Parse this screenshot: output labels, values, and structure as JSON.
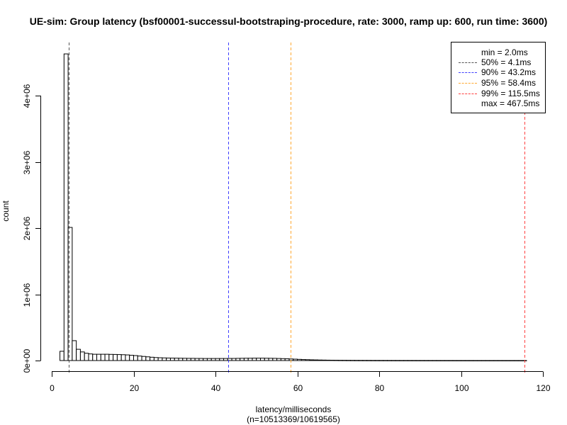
{
  "chart_data": {
    "type": "bar",
    "subtype": "histogram",
    "title": "UE-sim: Group latency (bsf00001-successul-bootstraping-procedure, rate: 3000, ramp up: 600, run time: 3600)",
    "xlabel": "latency/milliseconds",
    "xlabel_sub": "(n=10513369/10619565)",
    "ylabel": "count",
    "xlim": [
      0,
      120
    ],
    "ylim": [
      0,
      4000000
    ],
    "x_ticks": [
      0,
      20,
      40,
      60,
      80,
      100,
      120
    ],
    "x_tick_labels": [
      "0",
      "20",
      "40",
      "60",
      "80",
      "100",
      "120"
    ],
    "y_ticks": [
      0,
      1000000,
      2000000,
      3000000,
      4000000
    ],
    "y_tick_labels": [
      "0e+00",
      "1e+06",
      "2e+06",
      "3e+06",
      "4e+06"
    ],
    "grid": false,
    "legend_position": "top-right",
    "bin_width": 1,
    "bin_start": 2,
    "values": [
      140000,
      4630000,
      2010000,
      300000,
      170000,
      130000,
      110000,
      100000,
      95000,
      95000,
      95000,
      95000,
      93000,
      92000,
      90000,
      88000,
      85000,
      80000,
      75000,
      68000,
      62000,
      56000,
      50000,
      45000,
      42000,
      40000,
      38000,
      37000,
      36000,
      35000,
      34000,
      33000,
      33000,
      32000,
      32000,
      31000,
      31000,
      31000,
      31000,
      31000,
      31000,
      32000,
      32000,
      33000,
      34000,
      35000,
      35000,
      36000,
      36000,
      36000,
      35000,
      34000,
      33000,
      31000,
      29000,
      27000,
      24000,
      21000,
      18000,
      15000,
      13000,
      11000,
      9500,
      8000,
      7000,
      6000,
      5200,
      4600,
      4000,
      3600,
      3200,
      2900,
      2600,
      2400,
      2200,
      2000,
      1800,
      1700,
      1600,
      1500,
      1400,
      1300,
      1200,
      1100,
      1050,
      1000,
      950,
      900,
      850,
      800,
      760,
      720,
      690,
      660,
      630,
      600,
      580,
      560,
      540,
      520,
      500,
      480,
      460,
      440,
      420,
      400,
      390,
      380,
      370,
      360,
      350,
      340,
      330,
      320
    ],
    "vlines": [
      {
        "label": "50%",
        "x": 4.1,
        "color": "#555555"
      },
      {
        "label": "90%",
        "x": 43.2,
        "color": "#4040ff"
      },
      {
        "label": "95%",
        "x": 58.4,
        "color": "#ffa830"
      },
      {
        "label": "99%",
        "x": 115.5,
        "color": "#ff4040"
      }
    ],
    "legend": [
      {
        "text": "min = 2.0ms",
        "color": null
      },
      {
        "text": "50% = 4.1ms",
        "color": "#555555"
      },
      {
        "text": "90% = 43.2ms",
        "color": "#4040ff"
      },
      {
        "text": "95% = 58.4ms",
        "color": "#ffa830"
      },
      {
        "text": "99% = 115.5ms",
        "color": "#ff4040"
      },
      {
        "text": "max = 467.5ms",
        "color": null
      }
    ]
  }
}
